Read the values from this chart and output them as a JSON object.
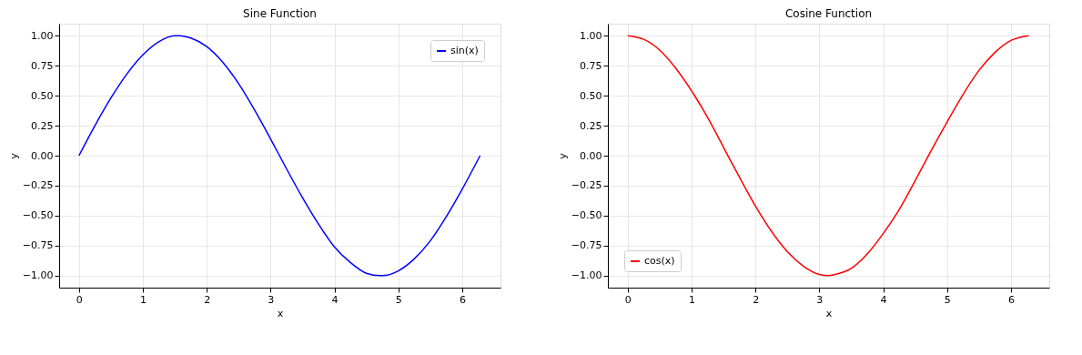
{
  "chart_data": [
    {
      "type": "line",
      "title": "Sine Function",
      "xlabel": "x",
      "ylabel": "y",
      "x": [
        0,
        0.25,
        0.5,
        0.75,
        1,
        1.25,
        1.5,
        1.57,
        1.75,
        2,
        2.25,
        2.5,
        2.75,
        3,
        3.25,
        3.5,
        3.75,
        4,
        4.25,
        4.5,
        4.71,
        4.75,
        5,
        5.25,
        5.5,
        5.75,
        6,
        6.28
      ],
      "series": [
        {
          "name": "sin(x)",
          "color": "#0000ff",
          "values": [
            0,
            0.25,
            0.48,
            0.68,
            0.84,
            0.95,
            1.0,
            1.0,
            0.98,
            0.91,
            0.78,
            0.6,
            0.38,
            0.14,
            -0.11,
            -0.35,
            -0.57,
            -0.76,
            -0.89,
            -0.98,
            -1.0,
            -1.0,
            -0.96,
            -0.86,
            -0.71,
            -0.51,
            -0.28,
            0
          ]
        }
      ],
      "xlim": [
        -0.31,
        6.6
      ],
      "ylim": [
        -1.1,
        1.1
      ],
      "xticks": [
        0,
        1,
        2,
        3,
        4,
        5,
        6
      ],
      "yticks": [
        {
          "value": -1,
          "label": "−1.00"
        },
        {
          "value": -0.75,
          "label": "−0.75"
        },
        {
          "value": -0.5,
          "label": "−0.50"
        },
        {
          "value": -0.25,
          "label": "−0.25"
        },
        {
          "value": 0,
          "label": "0.00"
        },
        {
          "value": 0.25,
          "label": "0.25"
        },
        {
          "value": 0.5,
          "label": "0.50"
        },
        {
          "value": 0.75,
          "label": "0.75"
        },
        {
          "value": 1,
          "label": "1.00"
        }
      ],
      "grid": true,
      "legend": "top right",
      "line_style": "solid",
      "marker": "none"
    },
    {
      "type": "line",
      "title": "Cosine Function",
      "xlabel": "x",
      "ylabel": "y",
      "x": [
        0,
        0.25,
        0.5,
        0.75,
        1,
        1.25,
        1.5,
        1.75,
        2,
        2.25,
        2.5,
        2.75,
        3,
        3.14,
        3.25,
        3.5,
        3.75,
        4,
        4.25,
        4.5,
        4.75,
        5,
        5.25,
        5.5,
        5.75,
        6,
        6.28
      ],
      "series": [
        {
          "name": "cos(x)",
          "color": "#ff0000",
          "values": [
            1,
            0.97,
            0.88,
            0.73,
            0.54,
            0.32,
            0.07,
            -0.18,
            -0.42,
            -0.63,
            -0.8,
            -0.92,
            -0.99,
            -1.0,
            -0.99,
            -0.94,
            -0.82,
            -0.65,
            -0.45,
            -0.21,
            0.04,
            0.28,
            0.51,
            0.71,
            0.86,
            0.96,
            1
          ]
        }
      ],
      "xlim": [
        -0.31,
        6.6
      ],
      "ylim": [
        -1.1,
        1.1
      ],
      "xticks": [
        0,
        1,
        2,
        3,
        4,
        5,
        6
      ],
      "yticks": [
        {
          "value": -1,
          "label": "−1.00"
        },
        {
          "value": -0.75,
          "label": "−0.75"
        },
        {
          "value": -0.5,
          "label": "−0.50"
        },
        {
          "value": -0.25,
          "label": "−0.25"
        },
        {
          "value": 0,
          "label": "0.00"
        },
        {
          "value": 0.25,
          "label": "0.25"
        },
        {
          "value": 0.5,
          "label": "0.50"
        },
        {
          "value": 0.75,
          "label": "0.75"
        },
        {
          "value": 1,
          "label": "1.00"
        }
      ],
      "grid": true,
      "legend": "bottom left",
      "line_style": "solid",
      "marker": "none"
    }
  ]
}
